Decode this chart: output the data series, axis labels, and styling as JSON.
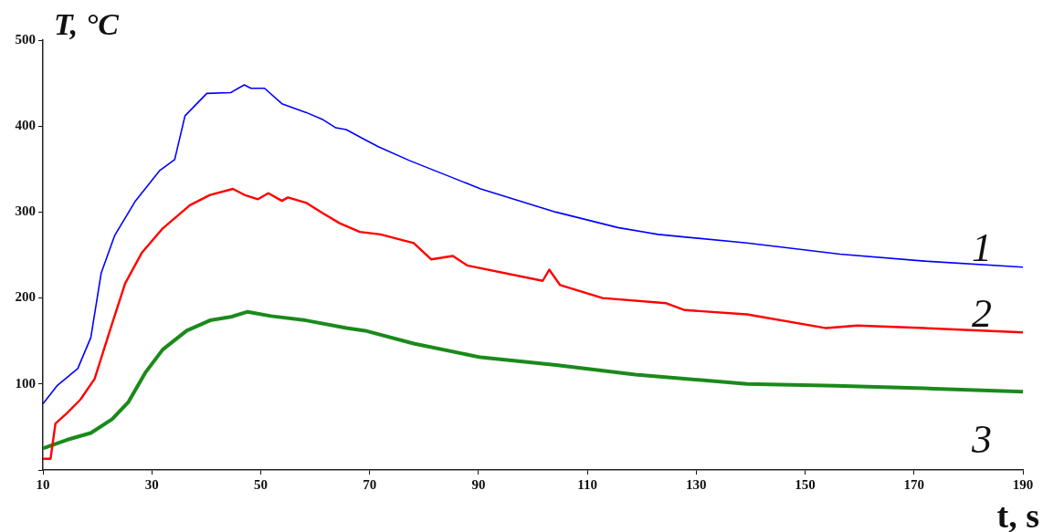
{
  "chart_data": {
    "type": "line",
    "xlabel": "t, s",
    "ylabel": "T, °C",
    "xlim": [
      10,
      190
    ],
    "xticks": [
      10,
      30,
      50,
      70,
      90,
      110,
      130,
      150,
      170,
      190
    ],
    "ylim": [
      0,
      500
    ],
    "yticks": [
      {
        "value": 0,
        "label": null
      },
      100,
      200,
      300,
      400,
      500
    ],
    "grid": false,
    "legend": false,
    "marker": "none",
    "line_style": "solid",
    "series": [
      {
        "name": "1",
        "color": "#0000ff",
        "x": [
          10,
          12.6,
          16.4,
          18.8,
          20.7,
          23.2,
          27,
          31.4,
          34.2,
          36.1,
          40.1,
          44.5,
          47,
          48.2,
          50.7,
          53.9,
          58.3,
          61.3,
          63.8,
          65.7,
          69.2,
          71.6,
          77.3,
          90.4,
          104.2,
          115.6,
          123,
          139.3,
          156.4,
          171.9,
          190
        ],
        "values": [
          77,
          98,
          118,
          154,
          229,
          273,
          313,
          348,
          361,
          412,
          438,
          439,
          448,
          444,
          444,
          426,
          416,
          408,
          398,
          396,
          384,
          376,
          360,
          327,
          300,
          282,
          274,
          264,
          251,
          243,
          236
        ]
      },
      {
        "name": "2",
        "color": "#ff0000",
        "x": [
          10,
          11.4,
          12.3,
          14.4,
          16.9,
          19.5,
          21.3,
          22.7,
          25.1,
          28.2,
          32,
          37,
          40.7,
          44.9,
          47,
          49.5,
          51.4,
          53.9,
          55,
          58.3,
          61.3,
          64.5,
          68.2,
          72,
          78.1,
          81.3,
          85.3,
          87.9,
          101.8,
          103,
          105,
          112.8,
          124.5,
          127.9,
          139.3,
          153.9,
          159.6,
          171.9,
          190
        ],
        "values": [
          13,
          13,
          54,
          66,
          82,
          106,
          142,
          170,
          217,
          253,
          281,
          308,
          320,
          327,
          320,
          315,
          322,
          313,
          317,
          311,
          299,
          287,
          277,
          274,
          264,
          245,
          249,
          238,
          220,
          233,
          215,
          200,
          194,
          186,
          181,
          165,
          168,
          165,
          160
        ]
      },
      {
        "name": "3",
        "color": "#1a8a1a",
        "x": [
          10,
          14.4,
          18.8,
          22.7,
          25.7,
          28.9,
          32,
          36.4,
          40.7,
          44.5,
          47.6,
          51.9,
          58.3,
          65.8,
          69.2,
          78.1,
          90.4,
          104.2,
          118.8,
          139.3,
          155.6,
          171.9,
          190
        ],
        "values": [
          25,
          35,
          43,
          59,
          79,
          114,
          140,
          162,
          174,
          178,
          184,
          179,
          174,
          165,
          162,
          147,
          131,
          122,
          111,
          100,
          98,
          95,
          91
        ]
      }
    ]
  }
}
